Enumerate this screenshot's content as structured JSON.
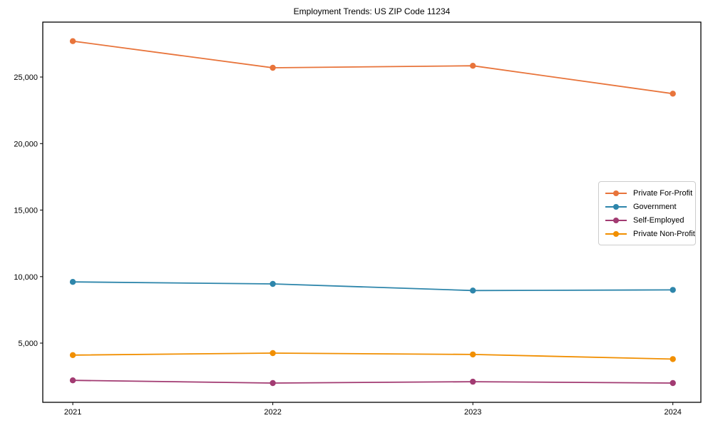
{
  "chart_data": {
    "type": "line",
    "title": "Employment Trends: US ZIP Code 11234",
    "xlabel": "",
    "ylabel": "",
    "grid": false,
    "legend_position": "center-right",
    "x": [
      2021,
      2022,
      2023,
      2024
    ],
    "xtick_labels": [
      "2021",
      "2022",
      "2023",
      "2024"
    ],
    "yticks": [
      {
        "value": 5000,
        "label": "5,000"
      },
      {
        "value": 10000,
        "label": "10,000"
      },
      {
        "value": 15000,
        "label": "15,000"
      },
      {
        "value": 20000,
        "label": "20,000"
      },
      {
        "value": 25000,
        "label": "25,000"
      }
    ],
    "xlim": [
      2020.85,
      2024.14
    ],
    "ylim": [
      550,
      29130
    ],
    "series": [
      {
        "name": "Private For-Profit",
        "color": "#E8743B",
        "values": [
          27700,
          25700,
          25850,
          23750
        ]
      },
      {
        "name": "Government",
        "color": "#2E86AB",
        "values": [
          9600,
          9450,
          8950,
          9000
        ]
      },
      {
        "name": "Self-Employed",
        "color": "#A23B72",
        "values": [
          2200,
          2000,
          2100,
          2000
        ]
      },
      {
        "name": "Private Non-Profit",
        "color": "#F18F01",
        "values": [
          4100,
          4250,
          4150,
          3800
        ]
      }
    ],
    "axis_color": "#000000",
    "background_color": "#ffffff"
  }
}
